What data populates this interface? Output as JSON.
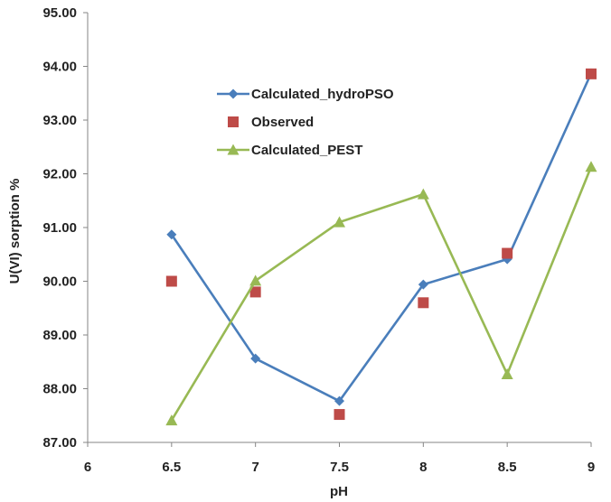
{
  "chart_data": {
    "type": "line",
    "title": "",
    "xlabel": "pH",
    "ylabel": "U(VI) sorption %",
    "xlim": [
      6,
      9
    ],
    "ylim": [
      87.0,
      95.0
    ],
    "x_ticks": [
      "6",
      "6.5",
      "7",
      "7.5",
      "8",
      "8.5",
      "9"
    ],
    "y_ticks": [
      "87.00",
      "88.00",
      "89.00",
      "90.00",
      "91.00",
      "92.00",
      "93.00",
      "94.00",
      "95.00"
    ],
    "grid": false,
    "legend_position": "upper-center",
    "x": [
      6.5,
      7,
      7.5,
      8,
      8.5,
      9
    ],
    "series": [
      {
        "name": "Calculated_hydroPSO",
        "marker": "diamond",
        "line": true,
        "color": "#4A7EBB",
        "values": [
          90.87,
          88.56,
          87.77,
          89.94,
          90.41,
          93.87
        ]
      },
      {
        "name": "Observed",
        "marker": "square",
        "line": false,
        "color": "#BE4B48",
        "values": [
          90.0,
          89.8,
          87.52,
          89.6,
          90.52,
          93.86
        ]
      },
      {
        "name": "Calculated_PEST",
        "marker": "triangle",
        "line": true,
        "color": "#98B954",
        "values": [
          87.41,
          90.01,
          91.1,
          91.62,
          88.27,
          92.13
        ]
      }
    ]
  }
}
